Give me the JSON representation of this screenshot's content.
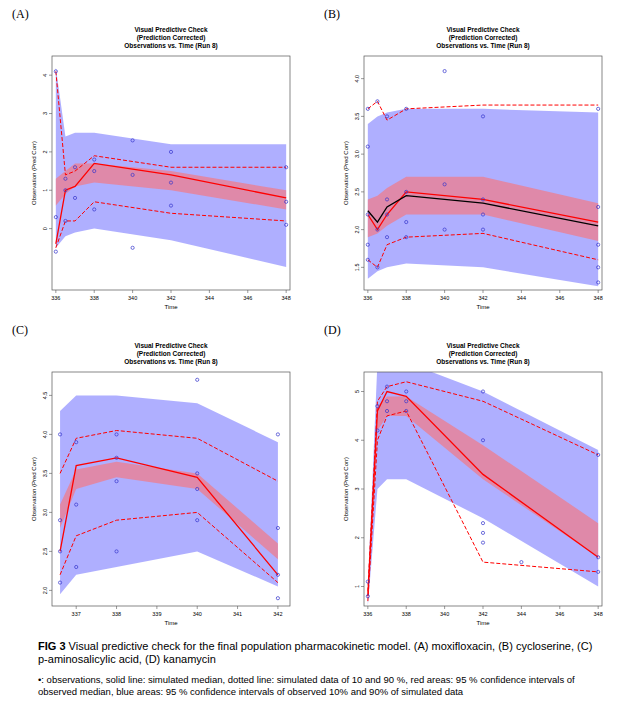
{
  "chart_data": [
    {
      "type": "line",
      "label": "(A)",
      "title": "Visual Predictive Check",
      "subtitle": [
        "(Prediction Corrected)",
        "Observations vs. Time (Run 8)"
      ],
      "x_label": "Time",
      "y_label": "Observation (Pred Corr)",
      "x": [
        336,
        336.5,
        337,
        338,
        342,
        348
      ],
      "xlim": [
        335.8,
        348.2
      ],
      "xticks": [
        336,
        338,
        340,
        342,
        344,
        346,
        348
      ],
      "ylim": [
        -1.6,
        4.5
      ],
      "yticks": [
        0,
        1,
        2,
        3,
        4
      ],
      "series": [
        {
          "type": "area",
          "color": "#7a7aff",
          "upper": [
            4.2,
            2.4,
            2.5,
            2.5,
            2.2,
            2.2
          ],
          "lower": [
            -0.5,
            -0.2,
            -0.1,
            0.0,
            -0.3,
            -1.0
          ]
        },
        {
          "type": "area",
          "color": "#ff7070",
          "upper": [
            1.3,
            1.5,
            1.7,
            1.7,
            1.5,
            1.0
          ],
          "lower": [
            0.6,
            0.9,
            1.1,
            1.2,
            1.0,
            0.5
          ]
        },
        {
          "type": "line",
          "color": "#ff0000",
          "line_style": "dashed",
          "values": [
            4.1,
            1.4,
            1.5,
            1.9,
            1.6,
            1.6
          ]
        },
        {
          "type": "line",
          "color": "#ff0000",
          "line_style": "dashed",
          "values": [
            -0.5,
            0.2,
            0.2,
            0.7,
            0.4,
            0.2
          ]
        },
        {
          "type": "line",
          "color": "#ff0000",
          "line_style": "solid",
          "values": [
            -0.4,
            1.0,
            1.1,
            1.7,
            1.4,
            0.8
          ]
        },
        {
          "type": "scatter",
          "color": "#3333cc",
          "marker": "circle",
          "x": [
            336,
            336,
            336,
            336.5,
            336.5,
            336.5,
            337,
            337,
            338,
            338,
            338,
            340,
            340,
            340,
            342,
            342,
            342,
            348,
            348,
            348
          ],
          "values": [
            4.1,
            -0.6,
            0.3,
            1.0,
            1.3,
            0.2,
            1.6,
            0.8,
            1.8,
            0.5,
            1.5,
            2.3,
            -0.5,
            1.4,
            2.0,
            1.2,
            0.6,
            1.6,
            0.7,
            0.1
          ]
        }
      ]
    },
    {
      "type": "line",
      "label": "(B)",
      "title": "Visual Predictive Check",
      "subtitle": [
        "(Prediction Corrected)",
        "Observations vs. Time (Run 8)"
      ],
      "x_label": "Time",
      "y_label": "Observation (Pred Corr)",
      "x": [
        336,
        336.5,
        337,
        338,
        342,
        348
      ],
      "xlim": [
        335.8,
        348.2
      ],
      "xticks": [
        336,
        338,
        340,
        342,
        344,
        346,
        348
      ],
      "ylim": [
        1.2,
        4.3
      ],
      "yticks": [
        1.5,
        {
          "value": 2,
          "label": "2.0"
        },
        2.5,
        {
          "value": 3,
          "label": "3.0"
        },
        3.5,
        {
          "value": 4,
          "label": "4.0"
        }
      ],
      "series": [
        {
          "type": "area",
          "color": "#7a7aff",
          "upper": [
            3.4,
            3.5,
            3.55,
            3.6,
            3.6,
            3.55
          ],
          "lower": [
            1.35,
            1.45,
            1.5,
            1.55,
            1.5,
            1.25
          ]
        },
        {
          "type": "area",
          "color": "#ff7070",
          "upper": [
            2.4,
            2.45,
            2.55,
            2.7,
            2.7,
            2.35
          ],
          "lower": [
            1.9,
            1.95,
            2.05,
            2.2,
            2.2,
            1.85
          ]
        },
        {
          "type": "line",
          "color": "#ff0000",
          "line_style": "dashed",
          "values": [
            3.6,
            3.7,
            3.45,
            3.6,
            3.65,
            3.65
          ]
        },
        {
          "type": "line",
          "color": "#ff0000",
          "line_style": "dashed",
          "values": [
            1.6,
            1.5,
            1.8,
            1.9,
            1.95,
            1.6
          ]
        },
        {
          "type": "line",
          "color": "#ff0000",
          "line_style": "solid",
          "values": [
            2.2,
            2.0,
            2.2,
            2.5,
            2.4,
            2.1
          ]
        },
        {
          "type": "line",
          "color": "#000000",
          "line_style": "solid",
          "values": [
            2.25,
            2.1,
            2.3,
            2.45,
            2.35,
            2.05
          ]
        },
        {
          "type": "scatter",
          "color": "#3333cc",
          "marker": "circle",
          "x": [
            336,
            336,
            336,
            336,
            336,
            336.5,
            336.5,
            336.5,
            337,
            337,
            337,
            337,
            338,
            338,
            338,
            338,
            340,
            340,
            340,
            342,
            342,
            342,
            342,
            348,
            348,
            348,
            348,
            348
          ],
          "values": [
            3.6,
            3.1,
            2.2,
            1.6,
            1.8,
            3.7,
            2.0,
            1.5,
            3.5,
            2.4,
            2.2,
            1.9,
            3.6,
            2.5,
            2.1,
            1.9,
            4.1,
            2.6,
            2.0,
            3.5,
            2.4,
            2.2,
            2.0,
            3.6,
            2.3,
            1.8,
            1.5,
            1.3
          ]
        }
      ]
    },
    {
      "type": "line",
      "label": "(C)",
      "title": "Visual Predictive Check",
      "subtitle": [
        "(Prediction Corrected)",
        "Observations vs. Time (Run 8)"
      ],
      "x_label": "Time",
      "y_label": "Observation (Pred Corr)",
      "x": [
        336.6,
        337,
        338,
        340,
        342
      ],
      "xlim": [
        336.4,
        342.3
      ],
      "xticks": [
        337,
        338,
        339,
        340,
        341,
        342
      ],
      "ylim": [
        1.8,
        4.8
      ],
      "yticks": [
        {
          "value": 2,
          "label": "2.0"
        },
        2.5,
        {
          "value": 3,
          "label": "3.0"
        },
        3.5,
        {
          "value": 4,
          "label": "4.0"
        },
        4.5
      ],
      "series": [
        {
          "type": "area",
          "color": "#7a7aff",
          "upper": [
            4.3,
            4.5,
            4.5,
            4.4,
            3.9
          ],
          "lower": [
            1.95,
            2.2,
            2.3,
            2.5,
            2.05
          ]
        },
        {
          "type": "area",
          "color": "#ff7070",
          "upper": [
            3.1,
            3.55,
            3.65,
            3.5,
            2.6
          ],
          "lower": [
            2.8,
            3.3,
            3.45,
            3.3,
            2.4
          ]
        },
        {
          "type": "line",
          "color": "#ff0000",
          "line_style": "dashed",
          "values": [
            3.5,
            3.95,
            4.05,
            3.95,
            3.4
          ]
        },
        {
          "type": "line",
          "color": "#ff0000",
          "line_style": "dashed",
          "values": [
            2.2,
            2.7,
            2.9,
            3.0,
            2.1
          ]
        },
        {
          "type": "line",
          "color": "#ff0000",
          "line_style": "solid",
          "values": [
            2.5,
            3.6,
            3.7,
            3.45,
            2.2
          ]
        },
        {
          "type": "scatter",
          "color": "#3333cc",
          "marker": "circle",
          "x": [
            336.6,
            336.6,
            336.6,
            336.6,
            337,
            337,
            337,
            338,
            338,
            338,
            338,
            340,
            340,
            340,
            340,
            342,
            342,
            342,
            342
          ],
          "values": [
            4.0,
            2.9,
            2.5,
            2.1,
            3.9,
            3.1,
            2.3,
            4.0,
            3.7,
            3.4,
            2.5,
            4.7,
            3.5,
            3.3,
            2.9,
            4.0,
            2.8,
            2.2,
            1.9
          ]
        }
      ]
    },
    {
      "type": "line",
      "label": "(D)",
      "title": "Visual Predictive Check",
      "subtitle": [
        "(Prediction Corrected)",
        "Observations vs. Time (Run 8)"
      ],
      "x_label": "Time",
      "y_label": "Observation (Pred Corr)",
      "x": [
        336,
        336.5,
        337,
        338,
        342,
        348
      ],
      "xlim": [
        335.8,
        348.2
      ],
      "xticks": [
        336,
        338,
        340,
        342,
        344,
        346,
        348
      ],
      "ylim": [
        0.6,
        5.4
      ],
      "yticks": [
        1,
        2,
        3,
        4,
        5
      ],
      "series": [
        {
          "type": "area",
          "color": "#7a7aff",
          "upper": [
            1.0,
            5.6,
            5.6,
            5.6,
            5.0,
            3.8
          ],
          "lower": [
            0.6,
            3.0,
            3.2,
            3.2,
            2.4,
            1.0
          ]
        },
        {
          "type": "area",
          "color": "#ff7070",
          "upper": [
            0.9,
            4.7,
            4.9,
            4.9,
            3.9,
            2.3
          ],
          "lower": [
            0.7,
            4.2,
            4.5,
            4.5,
            3.2,
            1.6
          ]
        },
        {
          "type": "line",
          "color": "#ff0000",
          "line_style": "dashed",
          "values": [
            0.9,
            4.8,
            5.1,
            5.2,
            4.8,
            3.7
          ]
        },
        {
          "type": "line",
          "color": "#ff0000",
          "line_style": "dashed",
          "values": [
            0.7,
            4.0,
            4.5,
            4.6,
            1.5,
            1.3
          ]
        },
        {
          "type": "line",
          "color": "#ff0000",
          "line_style": "solid",
          "values": [
            0.8,
            4.6,
            5.0,
            4.9,
            3.3,
            1.6
          ]
        },
        {
          "type": "scatter",
          "color": "#3333cc",
          "marker": "circle",
          "x": [
            336,
            336,
            336.5,
            336.5,
            337,
            337,
            337,
            338,
            338,
            338,
            342,
            342,
            342,
            342,
            342,
            344,
            348,
            348,
            348
          ],
          "values": [
            0.8,
            1.1,
            4.7,
            4.2,
            5.1,
            4.8,
            4.6,
            5.0,
            4.8,
            4.6,
            5.0,
            4.0,
            2.3,
            2.1,
            1.9,
            1.5,
            3.7,
            1.6,
            1.3
          ]
        }
      ]
    }
  ],
  "caption": {
    "label": "FIG 3",
    "text": "Visual predictive check for the final population pharmacokinetic model. (A) moxifloxacin, (B) cycloserine, (C) p-aminosalicylic acid, (D) kanamycin"
  },
  "note": "•: observations, solid line: simulated median, dotted line: simulated data of 10 and 90 %, red areas: 95 % confidence intervals of observed median, blue areas: 95 % confidence intervals of observed 10% and 90% of simulated data"
}
